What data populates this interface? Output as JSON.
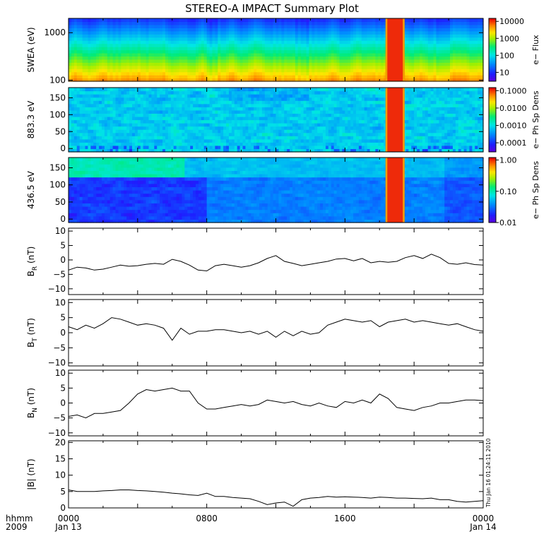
{
  "title": "STEREO-A IMPACT Summary Plot",
  "stamp": "Thu Jan 16 01:24:11 2010",
  "time_axis": {
    "corner_labels": [
      "hhmm",
      "2009"
    ],
    "ticks": [
      {
        "hour": 0,
        "line1": "0000",
        "line2": "Jan 13"
      },
      {
        "hour": 8,
        "line1": "0800",
        "line2": ""
      },
      {
        "hour": 16,
        "line1": "1600",
        "line2": ""
      },
      {
        "hour": 24,
        "line1": "0000",
        "line2": "Jan 14"
      }
    ],
    "range_hours": [
      0,
      24
    ]
  },
  "colors": {
    "line": "#000000",
    "frame": "#000000",
    "background": "#ffffff"
  },
  "chart_data": [
    {
      "type": "heatmap",
      "id": "swea",
      "ylabel": "SWEA (eV)",
      "ylog": true,
      "ylim": [
        95,
        2000
      ],
      "yticks": [
        {
          "v": 100,
          "label": "100"
        },
        {
          "v": 1000,
          "label": "1000"
        }
      ],
      "colorbar": {
        "label": "e− Flux",
        "log": true,
        "range": [
          3,
          15000
        ],
        "ticks": [
          {
            "v": 10,
            "label": "10"
          },
          {
            "v": 100,
            "label": "100"
          },
          {
            "v": 1000,
            "label": "1000"
          },
          {
            "v": 10000,
            "label": "10000"
          }
        ]
      },
      "data_gap_hours": [
        18.35,
        19.45
      ]
    },
    {
      "type": "heatmap",
      "id": "pad883",
      "ylabel": "883.3 eV",
      "ylim": [
        -10,
        180
      ],
      "yticks": [
        {
          "v": 0,
          "label": "0"
        },
        {
          "v": 50,
          "label": "50"
        },
        {
          "v": 100,
          "label": "100"
        },
        {
          "v": 150,
          "label": "150"
        }
      ],
      "colorbar": {
        "label": "e− Ph Sp Dens",
        "log": true,
        "range": [
          3e-05,
          0.15
        ],
        "ticks": [
          {
            "v": 0.0001,
            "label": "0.0001"
          },
          {
            "v": 0.001,
            "label": "0.0010"
          },
          {
            "v": 0.01,
            "label": "0.0100"
          },
          {
            "v": 0.1,
            "label": "0.1000"
          }
        ]
      },
      "data_gap_hours": [
        18.35,
        19.45
      ]
    },
    {
      "type": "heatmap",
      "id": "pad436",
      "ylabel": "436.5 eV",
      "ylim": [
        -10,
        180
      ],
      "yticks": [
        {
          "v": 0,
          "label": "0"
        },
        {
          "v": 50,
          "label": "50"
        },
        {
          "v": 100,
          "label": "100"
        },
        {
          "v": 150,
          "label": "150"
        }
      ],
      "colorbar": {
        "label": "e− Ph Sp Dens",
        "log": true,
        "range": [
          0.01,
          1.2
        ],
        "ticks": [
          {
            "v": 0.01,
            "label": "0.01"
          },
          {
            "v": 0.1,
            "label": "0.10"
          },
          {
            "v": 1,
            "label": "1.00"
          }
        ]
      },
      "data_gap_hours": [
        18.35,
        19.45
      ]
    },
    {
      "type": "line",
      "id": "br",
      "ylabel_main": "B",
      "ylabel_sub": "R",
      "ylabel_unit": " (nT)",
      "ylim": [
        -12,
        11
      ],
      "yticks": [
        {
          "v": -10,
          "label": "−10"
        },
        {
          "v": -5,
          "label": "−5"
        },
        {
          "v": 0,
          "label": "0"
        },
        {
          "v": 5,
          "label": "5"
        },
        {
          "v": 10,
          "label": "10"
        }
      ],
      "x": [
        0,
        0.5,
        1,
        1.5,
        2,
        2.5,
        3,
        3.5,
        4,
        4.5,
        5,
        5.5,
        6,
        6.5,
        7,
        7.5,
        8,
        8.5,
        9,
        9.5,
        10,
        10.5,
        11,
        11.5,
        12,
        12.5,
        13,
        13.5,
        14,
        14.5,
        15,
        15.5,
        16,
        16.5,
        17,
        17.5,
        18,
        18.5,
        19,
        19.5,
        20,
        20.5,
        21,
        21.5,
        22,
        22.5,
        23,
        23.5,
        24
      ],
      "y": [
        -3.5,
        -2.5,
        -2.8,
        -3.5,
        -3.2,
        -2.5,
        -1.8,
        -2.2,
        -2.0,
        -1.5,
        -1.2,
        -1.5,
        0.2,
        -0.5,
        -1.8,
        -3.5,
        -3.8,
        -2.0,
        -1.5,
        -2.0,
        -2.5,
        -2.0,
        -1.0,
        0.5,
        1.5,
        -0.5,
        -1.2,
        -2.0,
        -1.5,
        -1.0,
        -0.5,
        0.3,
        0.5,
        -0.3,
        0.5,
        -1.0,
        -0.5,
        -0.8,
        -0.5,
        0.8,
        1.5,
        0.5,
        2.0,
        0.8,
        -1.2,
        -1.5,
        -1.0,
        -1.6,
        -1.8
      ]
    },
    {
      "type": "line",
      "id": "bt",
      "ylabel_main": "B",
      "ylabel_sub": "T",
      "ylabel_unit": " (nT)",
      "ylim": [
        -11,
        11
      ],
      "yticks": [
        {
          "v": -10,
          "label": "−10"
        },
        {
          "v": -5,
          "label": "−5"
        },
        {
          "v": 0,
          "label": "0"
        },
        {
          "v": 5,
          "label": "5"
        },
        {
          "v": 10,
          "label": "10"
        }
      ],
      "x": [
        0,
        0.5,
        1,
        1.5,
        2,
        2.5,
        3,
        3.5,
        4,
        4.5,
        5,
        5.5,
        6,
        6.5,
        7,
        7.5,
        8,
        8.5,
        9,
        9.5,
        10,
        10.5,
        11,
        11.5,
        12,
        12.5,
        13,
        13.5,
        14,
        14.5,
        15,
        15.5,
        16,
        16.5,
        17,
        17.5,
        18,
        18.5,
        19,
        19.5,
        20,
        20.5,
        21,
        21.5,
        22,
        22.5,
        23,
        23.5,
        24
      ],
      "y": [
        2.0,
        1.0,
        2.5,
        1.5,
        3.0,
        5.0,
        4.5,
        3.5,
        2.5,
        3.0,
        2.5,
        1.5,
        -2.5,
        1.5,
        -0.5,
        0.5,
        0.5,
        1.0,
        1.0,
        0.5,
        0.0,
        0.5,
        -0.5,
        0.5,
        -1.5,
        0.5,
        -1.0,
        0.5,
        -0.5,
        0.0,
        2.5,
        3.5,
        4.5,
        4.0,
        3.5,
        4.0,
        2.0,
        3.5,
        4.0,
        4.5,
        3.5,
        4.0,
        3.5,
        3.0,
        2.5,
        3.0,
        2.0,
        1.0,
        0.5
      ]
    },
    {
      "type": "line",
      "id": "bn",
      "ylabel_main": "B",
      "ylabel_sub": "N",
      "ylabel_unit": " (nT)",
      "ylim": [
        -11,
        11
      ],
      "yticks": [
        {
          "v": -10,
          "label": "−10"
        },
        {
          "v": -5,
          "label": "−5"
        },
        {
          "v": 0,
          "label": "0"
        },
        {
          "v": 5,
          "label": "5"
        },
        {
          "v": 10,
          "label": "10"
        }
      ],
      "x": [
        0,
        0.5,
        1,
        1.5,
        2,
        2.5,
        3,
        3.5,
        4,
        4.5,
        5,
        5.5,
        6,
        6.5,
        7,
        7.5,
        8,
        8.5,
        9,
        9.5,
        10,
        10.5,
        11,
        11.5,
        12,
        12.5,
        13,
        13.5,
        14,
        14.5,
        15,
        15.5,
        16,
        16.5,
        17,
        17.5,
        18,
        18.5,
        19,
        19.5,
        20,
        20.5,
        21,
        21.5,
        22,
        22.5,
        23,
        23.5,
        24
      ],
      "y": [
        -4.5,
        -4.0,
        -5.0,
        -3.5,
        -3.5,
        -3.0,
        -2.5,
        0.0,
        3.0,
        4.5,
        4.0,
        4.5,
        5.0,
        4.0,
        4.0,
        0.0,
        -2.0,
        -2.0,
        -1.5,
        -1.0,
        -0.5,
        -1.0,
        -0.5,
        1.0,
        0.5,
        0.0,
        0.5,
        -0.5,
        -1.0,
        0.0,
        -1.0,
        -1.5,
        0.5,
        0.0,
        1.0,
        0.0,
        3.0,
        1.5,
        -1.5,
        -2.0,
        -2.5,
        -1.5,
        -1.0,
        0.0,
        0.0,
        0.5,
        1.0,
        1.0,
        0.8
      ]
    },
    {
      "type": "line",
      "id": "bmag",
      "ylabel_main": "|B|",
      "ylabel_sub": "",
      "ylabel_unit": " (nT)",
      "ylim": [
        0,
        20.5
      ],
      "yticks": [
        {
          "v": 0,
          "label": "0"
        },
        {
          "v": 5,
          "label": "5"
        },
        {
          "v": 10,
          "label": "10"
        },
        {
          "v": 15,
          "label": "15"
        },
        {
          "v": 20,
          "label": "20"
        }
      ],
      "x": [
        0,
        0.5,
        1,
        1.5,
        2,
        2.5,
        3,
        3.5,
        4,
        4.5,
        5,
        5.5,
        6,
        6.5,
        7,
        7.5,
        8,
        8.5,
        9,
        9.5,
        10,
        10.5,
        11,
        11.5,
        12,
        12.5,
        13,
        13.5,
        14,
        14.5,
        15,
        15.5,
        16,
        16.5,
        17,
        17.5,
        18,
        18.5,
        19,
        19.5,
        20,
        20.5,
        21,
        21.5,
        22,
        22.5,
        23,
        23.5,
        24
      ],
      "y": [
        5.5,
        5.0,
        5.0,
        5.0,
        5.2,
        5.3,
        5.5,
        5.5,
        5.3,
        5.2,
        5.0,
        4.8,
        4.5,
        4.3,
        4.0,
        3.8,
        4.5,
        3.5,
        3.5,
        3.2,
        3.0,
        2.8,
        2.0,
        1.0,
        1.5,
        1.8,
        0.5,
        2.5,
        3.0,
        3.2,
        3.5,
        3.3,
        3.4,
        3.3,
        3.2,
        3.0,
        3.3,
        3.2,
        3.0,
        3.0,
        2.9,
        2.8,
        3.0,
        2.5,
        2.5,
        2.0,
        1.8,
        2.0,
        2.2
      ]
    }
  ]
}
